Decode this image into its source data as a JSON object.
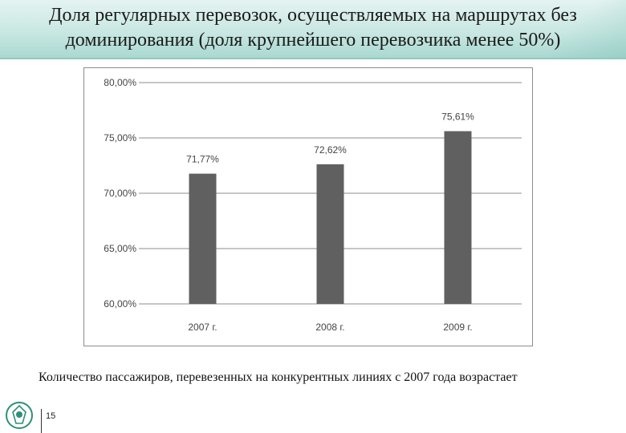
{
  "slide": {
    "title": "Доля  регулярных перевозок, осуществляемых на маршрутах без доминирования  (доля крупнейшего перевозчика  менее 50%)",
    "caption": "Количество пассажиров, перевезенных на конкурентных линиях с 2007 года возрастает",
    "page_number": "15",
    "logo_icon": "emblem-icon"
  },
  "chart_data": {
    "type": "bar",
    "categories": [
      "2007 г.",
      "2008 г.",
      "2009 г."
    ],
    "values": [
      71.77,
      72.62,
      75.61
    ],
    "data_labels": [
      "71,77%",
      "72,62%",
      "75,61%"
    ],
    "y_ticks": [
      60,
      65,
      70,
      75,
      80
    ],
    "y_tick_labels": [
      "60,00%",
      "65,00%",
      "70,00%",
      "75,00%",
      "80,00%"
    ],
    "ylim": [
      60,
      80
    ],
    "grid": true,
    "legend": "none",
    "bar_color": "#606060",
    "grid_color": "#8c8c8c",
    "label_color": "#444444"
  }
}
